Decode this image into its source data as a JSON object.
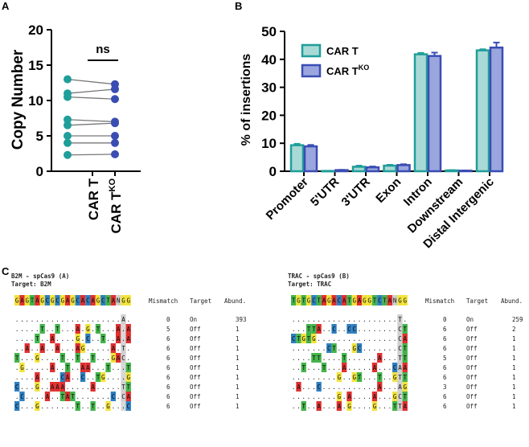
{
  "panelA": {
    "letter": "A",
    "ylabel": "Copy Number",
    "ylim": [
      0,
      20
    ],
    "yticks": [
      0,
      5,
      10,
      15,
      20
    ],
    "categories": [
      "CAR T",
      "CAR T",
      "KO"
    ],
    "cat_labels": {
      "car_t": "CAR T",
      "car_tko_base": "CAR T",
      "car_tko_sup": "KO"
    },
    "sig": "ns",
    "colors": {
      "car_t": "#1f9e9a",
      "car_tko": "#3a4db3"
    },
    "chart_data": {
      "type": "scatter",
      "paired": true,
      "series": [
        {
          "name": "CAR T",
          "values": [
            13.0,
            11.0,
            10.5,
            7.3,
            6.5,
            5.0,
            4.0,
            2.3
          ]
        },
        {
          "name": "CAR T KO",
          "values": [
            12.3,
            11.6,
            10.2,
            7.0,
            6.8,
            5.0,
            4.0,
            2.4
          ]
        }
      ]
    }
  },
  "panelB": {
    "letter": "B",
    "ylabel": "% of insertions",
    "ylim": [
      0,
      50
    ],
    "yticks": [
      0,
      10,
      20,
      30,
      40,
      50
    ],
    "legend": [
      {
        "label": "CAR T",
        "sup": "",
        "color": "#1f9e9a",
        "fill": "#a9d9d6"
      },
      {
        "label": "CAR T",
        "sup": "KO",
        "color": "#3a4db3",
        "fill": "#9aa6dd"
      }
    ],
    "chart_data": {
      "type": "bar",
      "categories": [
        "Promoter",
        "5'UTR",
        "3'UTR",
        "Exon",
        "Intron",
        "Downstream",
        "Distal Intergenic"
      ],
      "series": [
        {
          "name": "CAR T",
          "values": [
            9.3,
            0.1,
            1.6,
            2.0,
            41.8,
            0.3,
            43.2
          ],
          "errors": [
            0.5,
            0.05,
            0.4,
            0.3,
            0.5,
            0.1,
            0.4
          ]
        },
        {
          "name": "CAR T KO",
          "values": [
            8.9,
            0.4,
            1.4,
            2.2,
            41.2,
            0.2,
            44.2
          ],
          "errors": [
            0.5,
            0.1,
            0.3,
            0.3,
            1.2,
            0.1,
            1.8
          ]
        }
      ]
    }
  },
  "panelC": {
    "letter": "C",
    "headers": {
      "mismatch": "Mismatch",
      "target": "Target",
      "abund": "Abund."
    },
    "left": {
      "title": "B2M - spCas9 (A)",
      "target_label": "Target: B2M",
      "ref": "GAGTAGCGCGAGCACAGCTANGG",
      "rows": [
        {
          "seq": ".....................A.",
          "mm": "0",
          "target": "On",
          "abund": "393"
        },
        {
          "seq": ".....T..T...A.G.T...A.A",
          "mm": "5",
          "target": "Off",
          "abund": "1"
        },
        {
          "seq": "....T..A....G.C..T..A.A",
          "mm": "6",
          "target": "Off",
          "abund": "1"
        },
        {
          "seq": "..A..A..A...AG.....A.T.",
          "mm": "6",
          "target": "Off",
          "abund": "1"
        },
        {
          "seq": "T...G....T..T..T...GAC.",
          "mm": "6",
          "target": "Off",
          "abund": "1"
        },
        {
          "seq": ".G.....A..T..AA...T...T",
          "mm": "6",
          "target": "Off",
          "abund": "1"
        },
        {
          "seq": "....A....CA..C..TG....G",
          "mm": "6",
          "target": "Off",
          "abund": "1"
        },
        {
          "seq": "C...G..AAA.....A.....TT",
          "mm": "6",
          "target": "Off",
          "abund": "1"
        },
        {
          "seq": ".C....A..TAT.......C.CA",
          "mm": "6",
          "target": "Off",
          "abund": "1"
        },
        {
          "seq": "C...G.......T..T..G...C",
          "mm": "6",
          "target": "Off",
          "abund": "1"
        }
      ]
    },
    "right": {
      "title": "TRAC - spCas9 (B)",
      "target_label": "Target: TRAC",
      "ref": "TGTGCTAGACATGAGGTCTANGG",
      "rows": [
        {
          "seq": ".....................T.",
          "mm": "0",
          "target": "On",
          "abund": "259"
        },
        {
          "seq": "...TTA..C..CC........CT",
          "mm": "6",
          "target": "Off",
          "abund": "2"
        },
        {
          "seq": "CTGTG................CA",
          "mm": "6",
          "target": "Off",
          "abund": "1"
        },
        {
          "seq": ".......CT...GC.......CT",
          "mm": "6",
          "target": "Off",
          "abund": "1"
        },
        {
          "seq": "....TT....T......A...TT",
          "mm": "5",
          "target": "Off",
          "abund": "1"
        },
        {
          "seq": "..T...T...A.....A...CAA",
          "mm": "6",
          "target": "Off",
          "abund": "1"
        },
        {
          "seq": ".........G..GT...T..GTT",
          "mm": "6",
          "target": "Off",
          "abund": "1"
        },
        {
          "seq": ".A...C...........A...AG",
          "mm": "3",
          "target": "Off",
          "abund": "1"
        },
        {
          "seq": ".........G.A....A...GCT",
          "mm": "6",
          "target": "Off",
          "abund": "1"
        },
        {
          "seq": "..T..A...A.G....G...TTA",
          "mm": "6",
          "target": "Off",
          "abund": "1"
        }
      ]
    },
    "base_colors": {
      "A": "#e03030",
      "C": "#2f7fc1",
      "G": "#f2e33a",
      "T": "#43b44b",
      "N": "#cfcfcf"
    }
  }
}
